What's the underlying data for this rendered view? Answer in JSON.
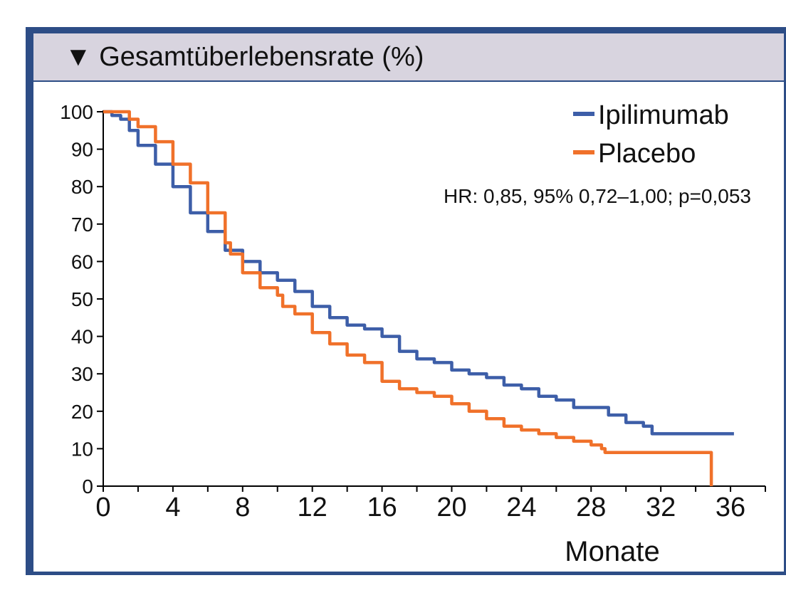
{
  "header": {
    "icon": "triangle-down-icon",
    "triangle": "▼",
    "title": "Gesamtüberlebensrate (%)"
  },
  "colors": {
    "frame": "#2d4d86",
    "header_bg": "#d8d4df",
    "ipilimumab": "#3d5ea8",
    "placebo": "#f0712a"
  },
  "chart_data": {
    "type": "line",
    "subtype": "kaplan-meier",
    "title": "Gesamtüberlebensrate (%)",
    "xlabel": "Monate",
    "ylabel": "",
    "xlim": [
      0,
      38
    ],
    "ylim": [
      0,
      100
    ],
    "xticks": [
      0,
      4,
      8,
      12,
      16,
      20,
      24,
      28,
      32,
      36
    ],
    "yticks": [
      0,
      10,
      20,
      30,
      40,
      50,
      60,
      70,
      80,
      90,
      100
    ],
    "legend_position": "top-right",
    "annotation": "HR: 0,85, 95% 0,72–1,00; p=0,053",
    "series": [
      {
        "name": "Ipilimumab",
        "color": "#3d5ea8",
        "points": [
          [
            0,
            100
          ],
          [
            0.5,
            99
          ],
          [
            1,
            98
          ],
          [
            1.5,
            95
          ],
          [
            2,
            91
          ],
          [
            3,
            86
          ],
          [
            4,
            80
          ],
          [
            5,
            73
          ],
          [
            6,
            68
          ],
          [
            7,
            63
          ],
          [
            8,
            60
          ],
          [
            9,
            57
          ],
          [
            10,
            55
          ],
          [
            11,
            52
          ],
          [
            12,
            48
          ],
          [
            13,
            45
          ],
          [
            14,
            43
          ],
          [
            15,
            42
          ],
          [
            16,
            40
          ],
          [
            17,
            36
          ],
          [
            18,
            34
          ],
          [
            19,
            33
          ],
          [
            20,
            31
          ],
          [
            21,
            30
          ],
          [
            22,
            29
          ],
          [
            23,
            27
          ],
          [
            24,
            26
          ],
          [
            25,
            24
          ],
          [
            26,
            23
          ],
          [
            27,
            21
          ],
          [
            28,
            21
          ],
          [
            29,
            19
          ],
          [
            30,
            17
          ],
          [
            31,
            16
          ],
          [
            31.5,
            14
          ],
          [
            36.2,
            14
          ]
        ]
      },
      {
        "name": "Placebo",
        "color": "#f0712a",
        "points": [
          [
            0,
            100
          ],
          [
            1,
            100
          ],
          [
            1.5,
            98
          ],
          [
            2,
            96
          ],
          [
            3,
            92
          ],
          [
            4,
            86
          ],
          [
            5,
            81
          ],
          [
            6,
            73
          ],
          [
            7,
            65
          ],
          [
            7.3,
            62
          ],
          [
            8,
            57
          ],
          [
            9,
            53
          ],
          [
            10,
            51
          ],
          [
            10.3,
            48
          ],
          [
            11,
            46
          ],
          [
            12,
            41
          ],
          [
            13,
            38
          ],
          [
            14,
            35
          ],
          [
            15,
            33
          ],
          [
            16,
            28
          ],
          [
            17,
            26
          ],
          [
            18,
            25
          ],
          [
            19,
            24
          ],
          [
            20,
            22
          ],
          [
            21,
            20
          ],
          [
            22,
            18
          ],
          [
            23,
            16
          ],
          [
            24,
            15
          ],
          [
            25,
            14
          ],
          [
            26,
            13
          ],
          [
            27,
            12
          ],
          [
            28,
            11
          ],
          [
            28.6,
            10
          ],
          [
            28.8,
            9
          ],
          [
            34.9,
            9
          ],
          [
            34.9,
            0
          ]
        ]
      }
    ]
  }
}
